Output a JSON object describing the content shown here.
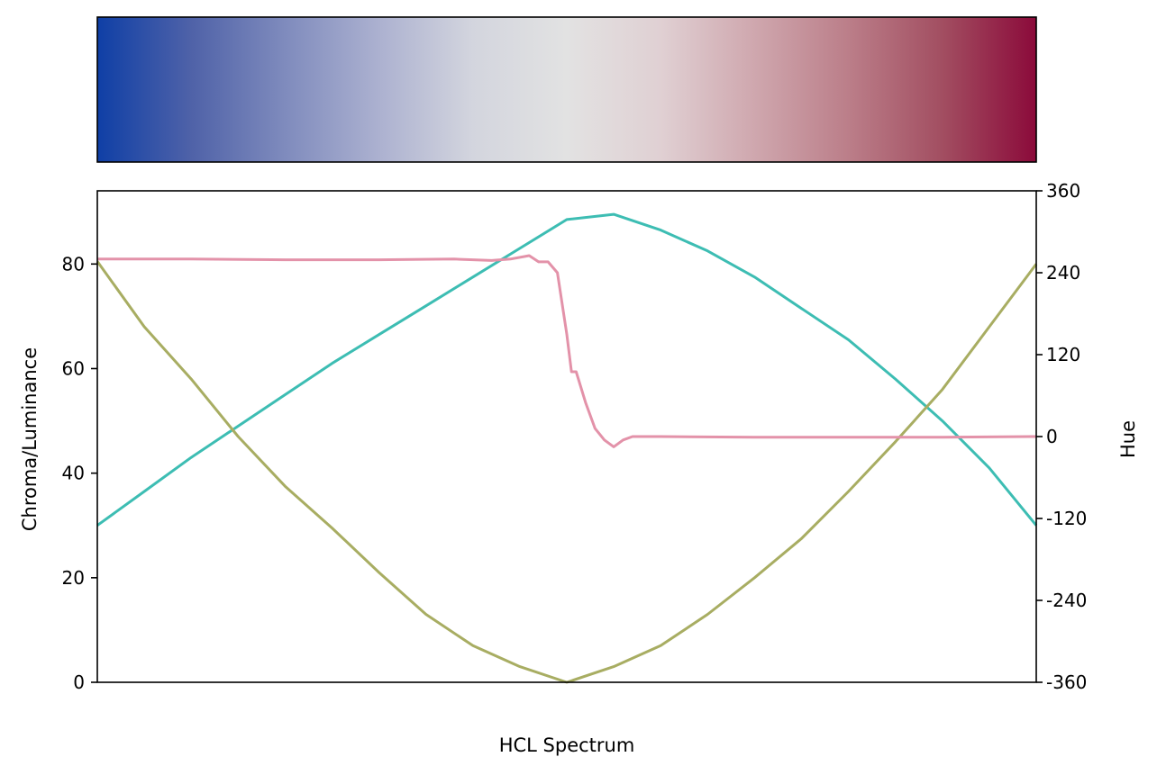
{
  "chart_data": [
    {
      "type": "colorbar",
      "colormap_stops": [
        {
          "pos": 0.0,
          "color": "#0f3fa6"
        },
        {
          "pos": 0.1,
          "color": "#4f62a8"
        },
        {
          "pos": 0.2,
          "color": "#7f8bbd"
        },
        {
          "pos": 0.3,
          "color": "#acb1d0"
        },
        {
          "pos": 0.4,
          "color": "#d3d5de"
        },
        {
          "pos": 0.5,
          "color": "#e2e2e2"
        },
        {
          "pos": 0.6,
          "color": "#e0d0d3"
        },
        {
          "pos": 0.7,
          "color": "#cfa7ae"
        },
        {
          "pos": 0.8,
          "color": "#bb7e89"
        },
        {
          "pos": 0.9,
          "color": "#a24e61"
        },
        {
          "pos": 1.0,
          "color": "#8b0a3a"
        }
      ]
    },
    {
      "type": "line",
      "xlabel": "HCL Spectrum",
      "ylabel": "Chroma/Luminance",
      "y2label": "Hue",
      "xlim": [
        0,
        1
      ],
      "ylim": [
        0,
        94
      ],
      "y2lim": [
        -360,
        360
      ],
      "yticks": [
        "0",
        "20",
        "40",
        "60",
        "80"
      ],
      "y2ticks": [
        "-360",
        "-240",
        "-120",
        "0",
        "120",
        "240",
        "360"
      ],
      "series": [
        {
          "role": "luminance",
          "color": "#3dbdb3",
          "axis": "left",
          "x": [
            0.0,
            0.05,
            0.1,
            0.15,
            0.2,
            0.25,
            0.3,
            0.35,
            0.4,
            0.45,
            0.5,
            0.55,
            0.6,
            0.65,
            0.7,
            0.75,
            0.8,
            0.85,
            0.9,
            0.95,
            1.0
          ],
          "y": [
            30,
            36.5,
            43,
            49,
            55,
            61,
            66.5,
            72,
            77.5,
            83,
            88.5,
            89.5,
            86.5,
            82.5,
            77.5,
            71.5,
            65.5,
            58,
            50,
            41,
            30
          ]
        },
        {
          "role": "chroma",
          "color": "#a8ad62",
          "axis": "left",
          "x": [
            0.0,
            0.05,
            0.1,
            0.15,
            0.2,
            0.25,
            0.3,
            0.35,
            0.4,
            0.45,
            0.5,
            0.55,
            0.6,
            0.65,
            0.7,
            0.75,
            0.8,
            0.85,
            0.9,
            0.95,
            1.0
          ],
          "y": [
            80.5,
            68,
            58,
            47,
            37.5,
            29.5,
            21,
            13,
            7,
            3,
            0,
            3,
            7,
            13,
            20,
            27.5,
            36.5,
            46,
            56,
            68,
            80
          ]
        },
        {
          "role": "hue",
          "color": "#e392a9",
          "axis": "right",
          "x": [
            0.0,
            0.1,
            0.2,
            0.3,
            0.38,
            0.42,
            0.44,
            0.46,
            0.47,
            0.48,
            0.49,
            0.5,
            0.505,
            0.51,
            0.52,
            0.53,
            0.54,
            0.55,
            0.56,
            0.57,
            0.6,
            0.7,
            0.8,
            0.9,
            1.0
          ],
          "y": [
            260,
            260,
            259,
            259,
            260,
            258,
            260,
            265,
            256,
            256,
            240,
            150,
            95,
            95,
            50,
            12,
            -5,
            -15,
            -5,
            0,
            0,
            -1,
            -1,
            -1,
            0
          ]
        }
      ]
    }
  ]
}
